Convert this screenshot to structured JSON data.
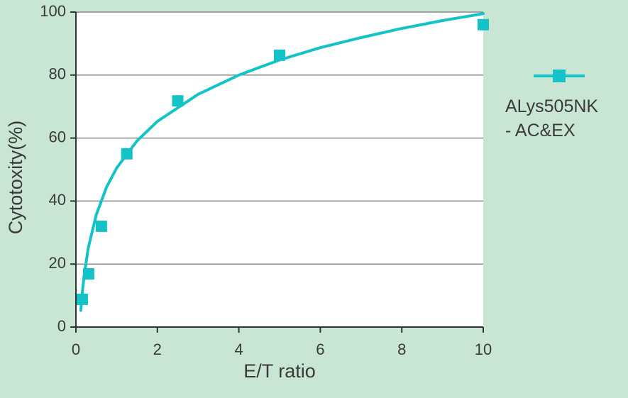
{
  "chart_data": {
    "type": "scatter",
    "x_label": "E/T ratio",
    "y_label": "Cytotoxity(%)",
    "series": [
      {
        "name": "ALys505NK\n- AC&EX",
        "color": "#14c3c8",
        "x": [
          0.156,
          0.3125,
          0.625,
          1.25,
          2.5,
          5,
          10
        ],
        "values": [
          8.8,
          16.9,
          32,
          55,
          71.8,
          86.3,
          96
        ]
      }
    ],
    "fit_line": {
      "color": "#14c3c8",
      "x": [
        0.12,
        0.15,
        0.2,
        0.3,
        0.5,
        0.75,
        1,
        1.5,
        2,
        3,
        4,
        5,
        6,
        7,
        8,
        9,
        10
      ],
      "values": [
        5.3,
        10.1,
        16.2,
        24.9,
        35.7,
        44.4,
        50.5,
        59.1,
        65.3,
        73.9,
        80.0,
        84.8,
        88.7,
        91.9,
        94.8,
        97.3,
        99.5
      ]
    },
    "xlim": [
      0,
      10
    ],
    "xticks": [
      0,
      2,
      4,
      6,
      8,
      10
    ],
    "ylim": [
      0,
      100
    ],
    "yticks": [
      0,
      20,
      40,
      60,
      80,
      100
    ],
    "grid": true
  }
}
